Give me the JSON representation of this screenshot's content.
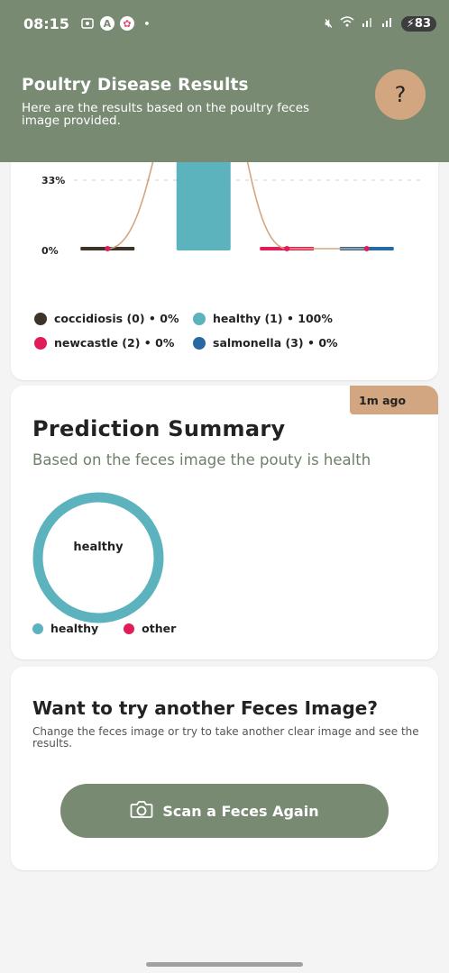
{
  "status_bar": {
    "time": "08:15",
    "battery": "83",
    "icons": [
      "screenshot-icon",
      "a-circle-icon",
      "brain-icon",
      "dot-icon",
      "mute-icon",
      "wifi-icon",
      "signal-icon",
      "signal-icon",
      "battery-charging-icon"
    ]
  },
  "header": {
    "title": "Poultry Disease Results",
    "subtitle": "Here are the results based on the poultry feces image provided.",
    "help_label": "?"
  },
  "chart_data": {
    "type": "bar",
    "categories": [
      "coccidiosis (0)",
      "healthy (1)",
      "newcastle (2)",
      "salmonella (3)"
    ],
    "values": [
      0,
      100,
      0,
      0
    ],
    "colors": [
      "#3e3329",
      "#5cb3bd",
      "#e11d59",
      "#2769a1"
    ],
    "ytick_labels": [
      "33%",
      "0%"
    ],
    "ylim": [
      0,
      100
    ],
    "grid": true,
    "overlay": "smoothed line with points"
  },
  "legend": [
    {
      "label": "coccidiosis (0) • 0%",
      "color": "#3e3329"
    },
    {
      "label": "healthy (1) • 100%",
      "color": "#5cb3bd"
    },
    {
      "label": "newcastle (2) • 0%",
      "color": "#e11d59"
    },
    {
      "label": "salmonella (3) • 0%",
      "color": "#2769a1"
    }
  ],
  "summary": {
    "badge": "1m ago",
    "title": "Prediction Summary",
    "subtitle": "Based on the feces image the pouty is health",
    "donut_center": "healthy",
    "donut_value_healthy": 100,
    "legend": [
      {
        "label": "healthy",
        "color": "#5cb3bd"
      },
      {
        "label": "other",
        "color": "#e11d59"
      }
    ]
  },
  "retry": {
    "title": "Want to try another Feces Image?",
    "subtitle": "Change the feces image or try to take another clear image and see the results.",
    "button_label": "Scan a Feces Again"
  }
}
